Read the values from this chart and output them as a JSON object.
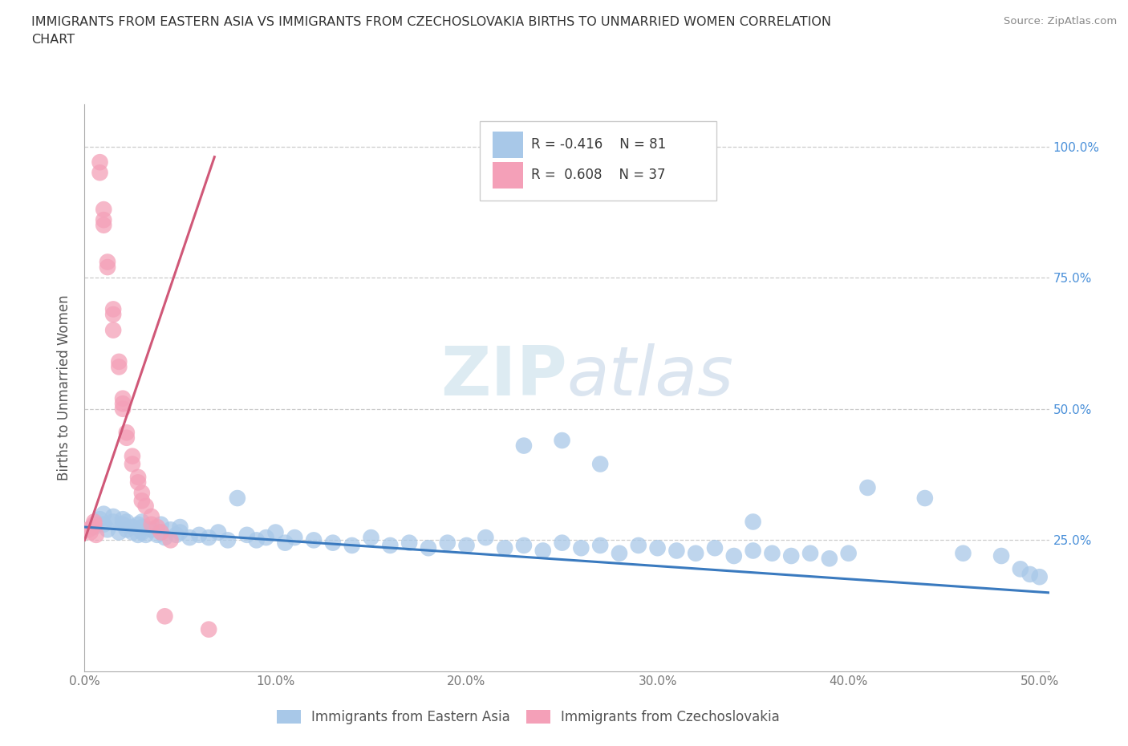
{
  "title_line1": "IMMIGRANTS FROM EASTERN ASIA VS IMMIGRANTS FROM CZECHOSLOVAKIA BIRTHS TO UNMARRIED WOMEN CORRELATION",
  "title_line2": "CHART",
  "source_text": "Source: ZipAtlas.com",
  "ylabel": "Births to Unmarried Women",
  "xlim": [
    0.0,
    0.505
  ],
  "ylim": [
    0.0,
    1.08
  ],
  "xtick_labels": [
    "0.0%",
    "10.0%",
    "20.0%",
    "30.0%",
    "40.0%",
    "50.0%"
  ],
  "xtick_vals": [
    0.0,
    0.1,
    0.2,
    0.3,
    0.4,
    0.5
  ],
  "ytick_labels": [
    "100.0%",
    "75.0%",
    "50.0%",
    "25.0%"
  ],
  "ytick_vals": [
    1.0,
    0.75,
    0.5,
    0.25
  ],
  "blue_color": "#a8c8e8",
  "pink_color": "#f4a0b8",
  "blue_line_color": "#3a7abf",
  "pink_line_color": "#d05878",
  "R_blue": -0.416,
  "N_blue": 81,
  "R_pink": 0.608,
  "N_pink": 37,
  "watermark_zip": "ZIP",
  "watermark_atlas": "atlas",
  "blue_scatter_x": [
    0.005,
    0.008,
    0.01,
    0.01,
    0.012,
    0.015,
    0.015,
    0.018,
    0.02,
    0.02,
    0.022,
    0.022,
    0.025,
    0.025,
    0.028,
    0.028,
    0.03,
    0.03,
    0.03,
    0.032,
    0.035,
    0.038,
    0.04,
    0.04,
    0.042,
    0.045,
    0.048,
    0.05,
    0.05,
    0.055,
    0.06,
    0.065,
    0.07,
    0.075,
    0.08,
    0.085,
    0.09,
    0.095,
    0.1,
    0.105,
    0.11,
    0.12,
    0.13,
    0.14,
    0.15,
    0.16,
    0.17,
    0.18,
    0.19,
    0.2,
    0.21,
    0.22,
    0.23,
    0.24,
    0.25,
    0.26,
    0.27,
    0.28,
    0.29,
    0.3,
    0.31,
    0.32,
    0.33,
    0.34,
    0.35,
    0.36,
    0.37,
    0.38,
    0.39,
    0.4,
    0.23,
    0.25,
    0.27,
    0.35,
    0.41,
    0.44,
    0.46,
    0.48,
    0.49,
    0.495,
    0.5
  ],
  "blue_scatter_y": [
    0.275,
    0.29,
    0.28,
    0.3,
    0.27,
    0.285,
    0.295,
    0.265,
    0.28,
    0.29,
    0.27,
    0.285,
    0.265,
    0.275,
    0.26,
    0.28,
    0.265,
    0.275,
    0.285,
    0.26,
    0.27,
    0.26,
    0.265,
    0.28,
    0.255,
    0.27,
    0.26,
    0.265,
    0.275,
    0.255,
    0.26,
    0.255,
    0.265,
    0.25,
    0.33,
    0.26,
    0.25,
    0.255,
    0.265,
    0.245,
    0.255,
    0.25,
    0.245,
    0.24,
    0.255,
    0.24,
    0.245,
    0.235,
    0.245,
    0.24,
    0.255,
    0.235,
    0.24,
    0.23,
    0.245,
    0.235,
    0.24,
    0.225,
    0.24,
    0.235,
    0.23,
    0.225,
    0.235,
    0.22,
    0.23,
    0.225,
    0.22,
    0.225,
    0.215,
    0.225,
    0.43,
    0.44,
    0.395,
    0.285,
    0.35,
    0.33,
    0.225,
    0.22,
    0.195,
    0.185,
    0.18
  ],
  "pink_scatter_x": [
    0.002,
    0.003,
    0.004,
    0.005,
    0.005,
    0.006,
    0.008,
    0.008,
    0.01,
    0.01,
    0.01,
    0.012,
    0.012,
    0.015,
    0.015,
    0.015,
    0.018,
    0.018,
    0.02,
    0.02,
    0.02,
    0.022,
    0.022,
    0.025,
    0.025,
    0.028,
    0.028,
    0.03,
    0.03,
    0.032,
    0.035,
    0.035,
    0.038,
    0.04,
    0.042,
    0.045,
    0.065
  ],
  "pink_scatter_y": [
    0.27,
    0.265,
    0.275,
    0.28,
    0.285,
    0.26,
    0.95,
    0.97,
    0.88,
    0.86,
    0.85,
    0.78,
    0.77,
    0.69,
    0.68,
    0.65,
    0.59,
    0.58,
    0.52,
    0.51,
    0.5,
    0.455,
    0.445,
    0.41,
    0.395,
    0.37,
    0.36,
    0.34,
    0.325,
    0.315,
    0.295,
    0.28,
    0.275,
    0.265,
    0.105,
    0.25,
    0.08
  ],
  "blue_trendline_x": [
    0.0,
    0.505
  ],
  "blue_trendline_y": [
    0.275,
    0.15
  ],
  "pink_trendline_x": [
    0.0,
    0.068
  ],
  "pink_trendline_y": [
    0.25,
    0.98
  ],
  "legend_label_blue": "Immigrants from Eastern Asia",
  "legend_label_pink": "Immigrants from Czechoslovakia"
}
